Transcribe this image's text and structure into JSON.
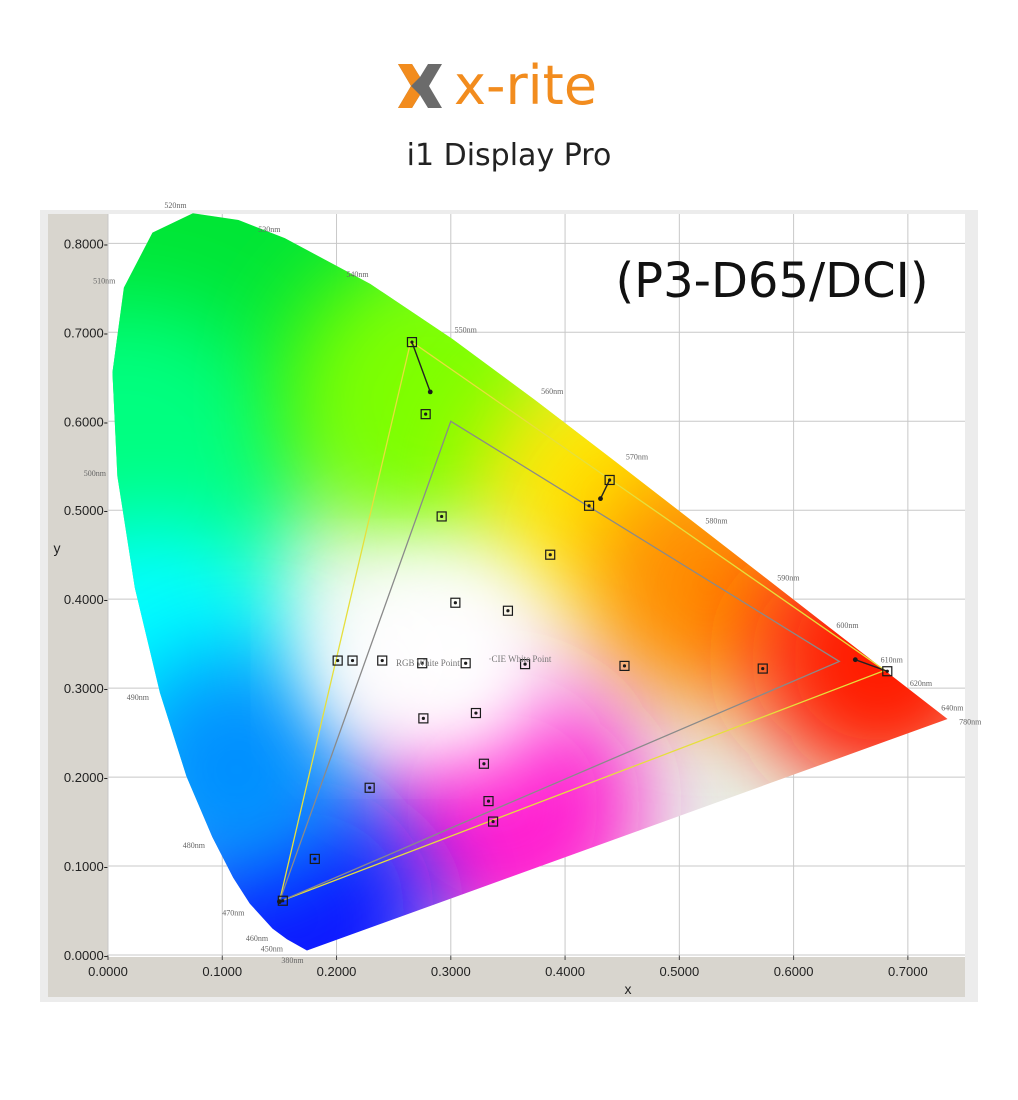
{
  "header": {
    "brand": "x-rite",
    "product": "i1 Display Pro"
  },
  "chart_data": {
    "type": "scatter",
    "title": "(P3-D65/DCI)",
    "x_label": "x",
    "y_label": "y",
    "xlim": [
      0,
      0.75
    ],
    "ylim": [
      0,
      0.833
    ],
    "grid": true,
    "xticks": [
      {
        "value": 0,
        "label": "0.0000"
      },
      {
        "value": 0.1,
        "label": "0.1000"
      },
      {
        "value": 0.2,
        "label": "0.2000"
      },
      {
        "value": 0.3,
        "label": "0.3000"
      },
      {
        "value": 0.4,
        "label": "0.4000"
      },
      {
        "value": 0.5,
        "label": "0.5000"
      },
      {
        "value": 0.6,
        "label": "0.6000"
      },
      {
        "value": 0.7,
        "label": "0.7000"
      }
    ],
    "yticks": [
      {
        "value": 0,
        "label": "0.0000-"
      },
      {
        "value": 0.1,
        "label": "0.1000-"
      },
      {
        "value": 0.2,
        "label": "0.2000-"
      },
      {
        "value": 0.3,
        "label": "0.3000-"
      },
      {
        "value": 0.4,
        "label": "0.4000-"
      },
      {
        "value": 0.5,
        "label": "0.5000-"
      },
      {
        "value": 0.6,
        "label": "0.6000-"
      },
      {
        "value": 0.7,
        "label": "0.7000-"
      },
      {
        "value": 0.8,
        "label": "0.8000-"
      }
    ],
    "spectral_locus": {
      "x": [
        0.1741,
        0.1566,
        0.144,
        0.1241,
        0.1096,
        0.0913,
        0.0687,
        0.0454,
        0.0235,
        0.0082,
        0.0039,
        0.0139,
        0.0389,
        0.0743,
        0.1142,
        0.1547,
        0.2296,
        0.3016,
        0.3731,
        0.4441,
        0.5125,
        0.5752,
        0.627,
        0.6658,
        0.6915,
        0.719,
        0.7347
      ],
      "y": [
        0.005,
        0.0177,
        0.0297,
        0.0578,
        0.0868,
        0.1327,
        0.2007,
        0.295,
        0.4127,
        0.5384,
        0.6548,
        0.7502,
        0.812,
        0.8338,
        0.8262,
        0.8059,
        0.7543,
        0.6923,
        0.6245,
        0.5547,
        0.4866,
        0.4242,
        0.3725,
        0.334,
        0.3083,
        0.2809,
        0.2653
      ],
      "labels": [
        "380nm",
        "450nm",
        "460nm",
        "470nm",
        null,
        "480nm",
        null,
        "490nm",
        null,
        "500nm",
        null,
        "510nm",
        null,
        "520nm",
        null,
        "530nm",
        "540nm",
        "550nm",
        "560nm",
        "570nm",
        "580nm",
        "590nm",
        "600nm",
        "610nm",
        "620nm",
        "640nm",
        "780nm"
      ]
    },
    "triangles": [
      {
        "color": "#e6df3c",
        "x": [
          0.265,
          0.68,
          0.15
        ],
        "y": [
          0.69,
          0.32,
          0.06
        ]
      },
      {
        "color": "#8a8a8a",
        "x": [
          0.3,
          0.64,
          0.15
        ],
        "y": [
          0.6,
          0.33,
          0.06
        ]
      }
    ],
    "series": [
      {
        "marker": "square",
        "color": "#1a1a1a",
        "x": [
          0.266,
          0.682,
          0.153,
          0.439,
          0.201,
          0.275,
          0.278,
          0.292,
          0.387,
          0.304,
          0.35,
          0.421,
          0.214,
          0.24,
          0.313,
          0.365,
          0.452,
          0.573,
          0.276,
          0.322,
          0.329,
          0.333,
          0.337,
          0.229,
          0.181
        ],
        "y": [
          0.689,
          0.319,
          0.061,
          0.534,
          0.331,
          0.328,
          0.608,
          0.493,
          0.45,
          0.396,
          0.387,
          0.505,
          0.331,
          0.331,
          0.328,
          0.327,
          0.325,
          0.322,
          0.266,
          0.272,
          0.215,
          0.173,
          0.15,
          0.188,
          0.108
        ]
      },
      {
        "marker": "dot",
        "color": "#1a1a1a",
        "x": [
          0.282,
          0.654,
          0.431,
          0.15
        ],
        "y": [
          0.633,
          0.332,
          0.513,
          0.06
        ]
      }
    ],
    "connectors": [
      {
        "x": [
          0.266,
          0.282
        ],
        "y": [
          0.689,
          0.633
        ]
      },
      {
        "x": [
          0.682,
          0.654
        ],
        "y": [
          0.319,
          0.332
        ]
      },
      {
        "x": [
          0.439,
          0.431
        ],
        "y": [
          0.534,
          0.513
        ]
      }
    ],
    "annotations": [
      {
        "text": "RGB White Point",
        "x": 0.252,
        "y": 0.328
      },
      {
        "text": "·CIE White Point",
        "x": 0.333,
        "y": 0.333
      }
    ]
  }
}
